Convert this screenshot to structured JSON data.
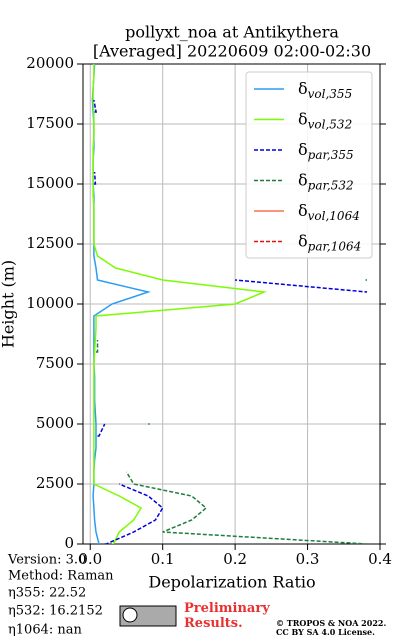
{
  "chart_data": {
    "type": "line",
    "title": "pollyxt_noa at Antikythera",
    "subtitle": "[Averaged] 20220609 02:00-02:30",
    "x_label": "Depolarization Ratio",
    "y_label": "Height (m)",
    "xlim": [
      -0.01,
      0.4
    ],
    "ylim": [
      0,
      20000
    ],
    "xticks": [
      {
        "value": 0,
        "label": "0.0"
      },
      0.1,
      0.2,
      0.3,
      0.4
    ],
    "yticks": [
      0,
      2500,
      5000,
      7500,
      10000,
      12500,
      15000,
      17500,
      20000
    ],
    "grid": true,
    "legend": "upper right",
    "y": [
      0,
      500,
      1000,
      1500,
      2000,
      2500,
      3000,
      3500,
      4000,
      4500,
      5000,
      5500,
      6000,
      6500,
      7000,
      7500,
      8000,
      8500,
      9000,
      9500,
      10000,
      10500,
      11000,
      11500,
      12000,
      12500,
      13000,
      13500,
      14000,
      14500,
      15000,
      15500,
      16000,
      16500,
      17000,
      17500,
      18000,
      18500,
      19000,
      19500,
      20000
    ],
    "series": [
      {
        "name": "δvol,355",
        "color": "#2a9df4",
        "dash": false,
        "values": [
          0.01,
          0.008,
          0.006,
          0.005,
          0.004,
          0.005,
          0.005,
          0.006,
          0.008,
          0.008,
          0.008,
          0.007,
          0.006,
          0.006,
          0.006,
          0.005,
          0.005,
          0.005,
          0.005,
          0.005,
          0.03,
          0.08,
          0.01,
          0.008,
          0.005,
          0.005,
          0.005,
          0.005,
          0.005,
          0.005,
          0.004,
          0.004,
          0.004,
          0.005,
          0.005,
          0.005,
          0.004,
          0.003,
          0.004,
          0.005,
          0.006
        ]
      },
      {
        "name": "δvol,532",
        "color": "#7cfc00",
        "dash": false,
        "values": [
          0.03,
          0.04,
          0.06,
          0.07,
          0.04,
          0.005,
          0.005,
          0.005,
          0.005,
          0.005,
          0.005,
          0.005,
          0.005,
          0.005,
          0.005,
          0.005,
          0.006,
          0.007,
          0.008,
          0.008,
          0.2,
          0.24,
          0.1,
          0.035,
          0.01,
          0.005,
          0.005,
          0.005,
          0.005,
          0.004,
          0.004,
          0.004,
          0.004,
          0.004,
          0.005,
          0.005,
          0.005,
          0.004,
          0.004,
          0.005,
          0.005
        ]
      },
      {
        "name": "δpar,355",
        "color": "#0000dd",
        "dash": true,
        "values": [
          0.02,
          0.06,
          0.09,
          0.1,
          0.08,
          0.04,
          null,
          null,
          null,
          0.01,
          0.02,
          null,
          null,
          null,
          null,
          null,
          null,
          null,
          null,
          null,
          null,
          0.38,
          0.2,
          null,
          null,
          null,
          null,
          null,
          null,
          null,
          0.005,
          0.006,
          null,
          null,
          null,
          null,
          0.006,
          0.005,
          null,
          null,
          null
        ]
      },
      {
        "name": "δpar,532",
        "color": "#1e7d3c",
        "dash": true,
        "values": [
          0.38,
          0.1,
          0.14,
          0.16,
          0.14,
          0.06,
          0.05,
          null,
          null,
          null,
          0.08,
          null,
          null,
          null,
          null,
          null,
          0.008,
          0.01,
          null,
          null,
          null,
          null,
          0.38,
          null,
          null,
          null,
          null,
          null,
          null,
          null,
          null,
          null,
          null,
          null,
          null,
          null,
          null,
          null,
          null,
          null,
          null
        ]
      },
      {
        "name": "δvol,1064",
        "color": "#f87050",
        "dash": false,
        "values": [
          null,
          null,
          null,
          null,
          null,
          null,
          null,
          null,
          null,
          null,
          null,
          null,
          null,
          null,
          null,
          null,
          null,
          null,
          null,
          null,
          null,
          null,
          null,
          null,
          null,
          null,
          null,
          null,
          null,
          null,
          null,
          null,
          null,
          null,
          null,
          null,
          null,
          null,
          null,
          null,
          null
        ]
      },
      {
        "name": "δpar,1064",
        "color": "#dd1111",
        "dash": true,
        "values": [
          null,
          null,
          null,
          null,
          null,
          null,
          null,
          null,
          null,
          null,
          null,
          null,
          null,
          null,
          null,
          null,
          null,
          null,
          null,
          null,
          null,
          null,
          null,
          null,
          null,
          null,
          null,
          null,
          null,
          null,
          null,
          null,
          null,
          null,
          null,
          null,
          null,
          null,
          null,
          null,
          null
        ]
      }
    ]
  },
  "footer": {
    "version": "Version: 3.0",
    "method": "Method: Raman",
    "eta355": "η355:  22.52",
    "eta532": "η532: 16.2152",
    "eta1064": "η1064:    nan",
    "preliminary": "Preliminary Results.",
    "copyright": "© TROPOS & NOA 2022.",
    "license": "CC BY SA 4.0 License."
  }
}
